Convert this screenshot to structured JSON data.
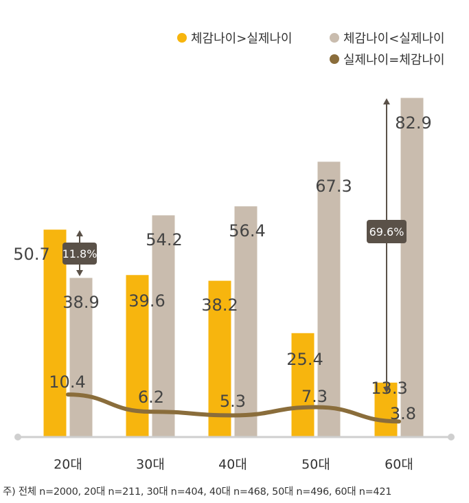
{
  "chart_data": {
    "type": "bar",
    "categories": [
      "20대",
      "30대",
      "40대",
      "50대",
      "60대"
    ],
    "series": [
      {
        "name": "체감나이>실제나이",
        "values": [
          50.7,
          39.6,
          38.2,
          25.4,
          13.3
        ],
        "color": "#f7b50e"
      },
      {
        "name": "체감나이<실제나이",
        "values": [
          38.9,
          54.2,
          56.4,
          67.3,
          82.9
        ],
        "color": "#c9bcae"
      },
      {
        "name": "실제나이=체감나이",
        "type": "line",
        "values": [
          10.4,
          6.2,
          5.3,
          7.3,
          3.8
        ],
        "color": "#8a6d3b"
      }
    ],
    "value_labels": {
      "bar1": [
        "50.7",
        "39.6",
        "38.2",
        "25.4",
        "13.3"
      ],
      "bar2": [
        "38.9",
        "54.2",
        "56.4",
        "67.3",
        "82.9"
      ],
      "line": [
        "10.4",
        "6.2",
        "5.3",
        "7.3",
        "3.8"
      ]
    },
    "annotations": [
      {
        "category": "20대",
        "text": "11.8%"
      },
      {
        "category": "60대",
        "text": "69.6%"
      }
    ],
    "ylim": [
      0,
      85
    ],
    "title": "",
    "xlabel": "",
    "ylabel": ""
  },
  "legend": {
    "item1": "체감나이>실제나이",
    "item2": "체감나이<실제나이",
    "item3": "실제나이=체감나이"
  },
  "note": "주) 전체 n=2000, 20대 n=211, 30대 n=404, 40대 n=468, 50대 n=496, 60대 n=421"
}
